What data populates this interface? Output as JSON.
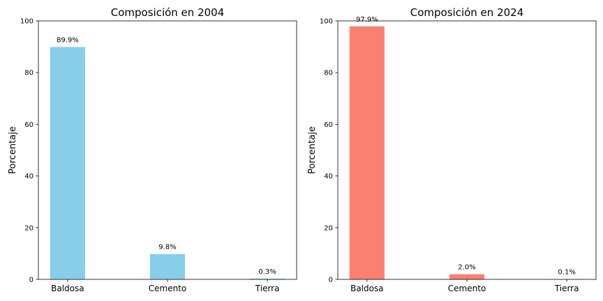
{
  "chart_data": [
    {
      "type": "bar",
      "title": "Composición en 2004",
      "xlabel": "",
      "ylabel": "Porcentaje",
      "ylim": [
        0,
        100
      ],
      "yticks": [
        0,
        20,
        40,
        60,
        80,
        100
      ],
      "categories": [
        "Baldosa",
        "Cemento",
        "Tierra"
      ],
      "values": [
        89.9,
        9.8,
        0.3
      ],
      "data_labels": [
        "89.9%",
        "9.8%",
        "0.3%"
      ],
      "color": "#87ceeb",
      "grid": false
    },
    {
      "type": "bar",
      "title": "Composición en 2024",
      "xlabel": "",
      "ylabel": "Porcentaje",
      "ylim": [
        0,
        100
      ],
      "yticks": [
        0,
        20,
        40,
        60,
        80,
        100
      ],
      "categories": [
        "Baldosa",
        "Cemento",
        "Tierra"
      ],
      "values": [
        97.9,
        2.0,
        0.1
      ],
      "data_labels": [
        "97.9%",
        "2.0%",
        "0.1%"
      ],
      "color": "#fa8072",
      "grid": false
    }
  ]
}
